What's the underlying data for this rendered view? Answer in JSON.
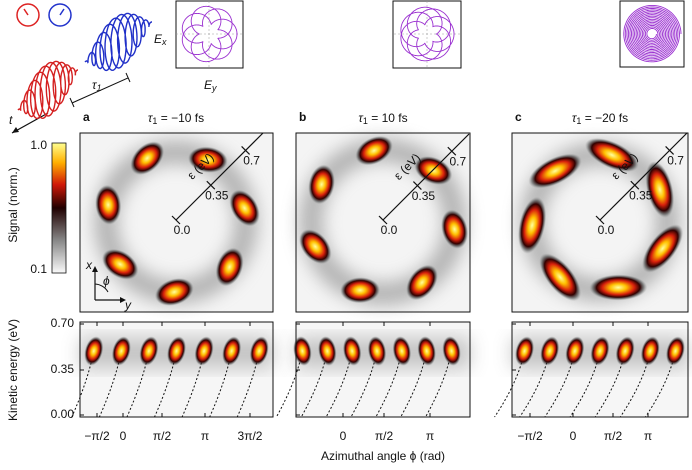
{
  "schematic": {
    "time_label": "t",
    "delay_symbol": "τ",
    "delay_subscript": "1"
  },
  "field_inset": {
    "x_symbol": "E",
    "x_subscript": "x",
    "y_symbol": "E",
    "y_subscript": "y"
  },
  "colorbar": {
    "label": "Signal (norm.)",
    "max": "1.0",
    "min": "0.1"
  },
  "energy_axis": {
    "label": "Kinetic energy (eV)",
    "ticks": [
      "0.70",
      "0.35",
      "0.00"
    ]
  },
  "x_axis_label": "Azimuthal angle ϕ (rad)",
  "orientation": {
    "x": "x",
    "y": "y",
    "angle": "ϕ"
  },
  "panels": [
    {
      "letter": "a",
      "delay_symbol": "τ",
      "delay_subscript": "1",
      "delay_text": " = −10 fs",
      "radial_label": "ε (eV)",
      "radial_ticks": [
        "0.7",
        "0.35",
        "0.0"
      ],
      "xticks": [
        "−π/2",
        "0",
        "π/2",
        "π",
        "3π/2"
      ]
    },
    {
      "letter": "b",
      "delay_symbol": "τ",
      "delay_subscript": "1",
      "delay_text": " = 10 fs",
      "radial_label": "ε (eV)",
      "radial_ticks": [
        "0.7",
        "0.35",
        "0.0"
      ],
      "xticks": [
        "0",
        "π/2",
        "π"
      ]
    },
    {
      "letter": "c",
      "delay_symbol": "τ",
      "delay_subscript": "1",
      "delay_text": " = −20 fs",
      "radial_label": "ε (eV)",
      "radial_ticks": [
        "0.7",
        "0.35",
        "0.0"
      ],
      "xticks": [
        "−π/2",
        "0",
        "π/2",
        "π"
      ]
    }
  ]
}
